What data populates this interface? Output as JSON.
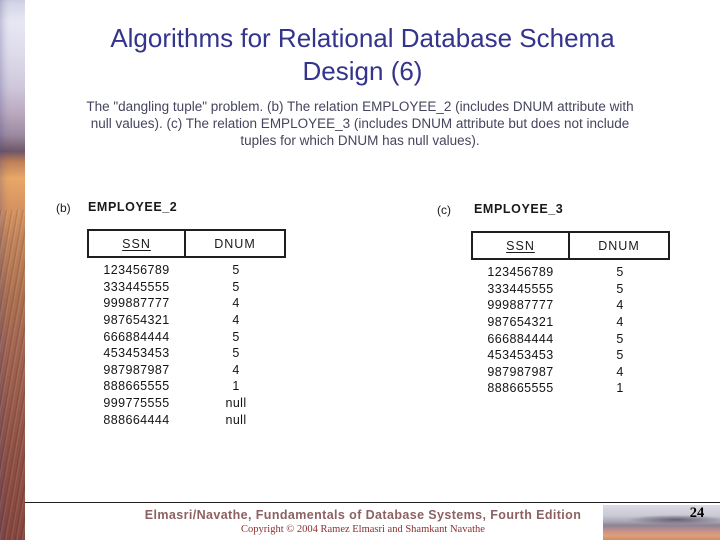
{
  "slide": {
    "title_line1": "Algorithms for Relational Database Schema",
    "title_line2": "Design (6)",
    "caption_line1": "The \"dangling tuple\" problem. (b) The relation EMPLOYEE_2 (includes DNUM attribute with",
    "caption_line2": "null values). (c) The relation EMPLOYEE_3 (includes DNUM attribute but does not include",
    "caption_line3": "tuples for which DNUM has null values)."
  },
  "figure": {
    "left": {
      "label": "(b)",
      "table_name": "EMPLOYEE_2",
      "columns": [
        "SSN",
        "DNUM"
      ],
      "rows": [
        [
          "123456789",
          "5"
        ],
        [
          "333445555",
          "5"
        ],
        [
          "999887777",
          "4"
        ],
        [
          "987654321",
          "4"
        ],
        [
          "666884444",
          "5"
        ],
        [
          "453453453",
          "5"
        ],
        [
          "987987987",
          "4"
        ],
        [
          "888665555",
          "1"
        ],
        [
          "999775555",
          "null"
        ],
        [
          "888664444",
          "null"
        ]
      ]
    },
    "right": {
      "label": "(c)",
      "table_name": "EMPLOYEE_3",
      "columns": [
        "SSN",
        "DNUM"
      ],
      "rows": [
        [
          "123456789",
          "5"
        ],
        [
          "333445555",
          "5"
        ],
        [
          "999887777",
          "4"
        ],
        [
          "987654321",
          "4"
        ],
        [
          "666884444",
          "5"
        ],
        [
          "453453453",
          "5"
        ],
        [
          "987987987",
          "4"
        ],
        [
          "888665555",
          "1"
        ]
      ]
    }
  },
  "footer": {
    "book": "Elmasri/Navathe, Fundamentals of Database Systems, Fourth Edition",
    "copyright": "Copyright © 2004 Ramez Elmasri and Shamkant Navathe",
    "page_number": "24"
  },
  "colors": {
    "title": "#34348c",
    "caption": "#45455e",
    "footer_book": "#8d6161",
    "footer_copyright": "#8b2f2f"
  }
}
